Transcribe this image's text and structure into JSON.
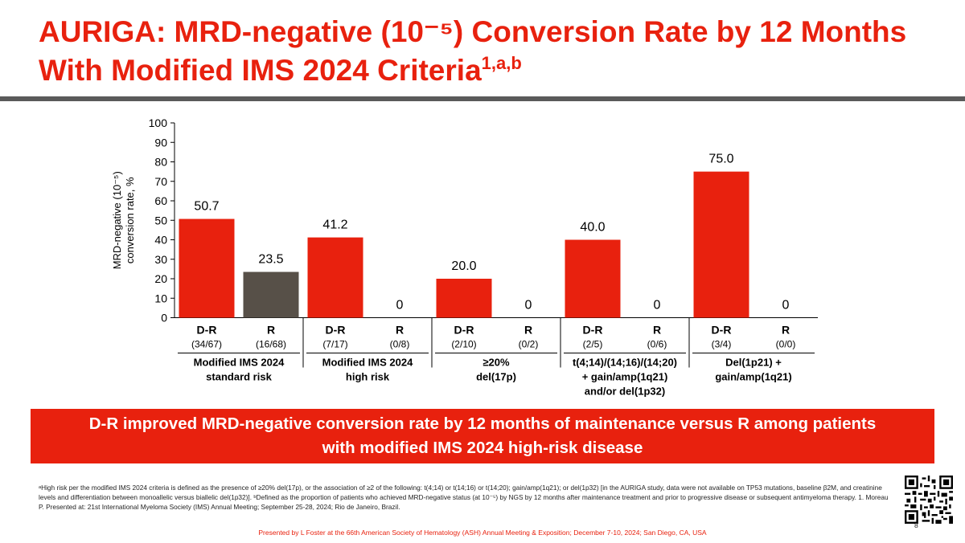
{
  "slide": {
    "title_main": "AURIGA: MRD-negative (10⁻⁵) Conversion Rate by 12 Months With Modified IMS 2024 Criteria",
    "title_superscript": "1,a,b",
    "banner_text": "D-R improved MRD-negative conversion rate by 12 months of maintenance versus R among patients with modified IMS 2024 high-risk disease",
    "footnote": "ᵃHigh risk per the modified IMS 2024 criteria is defined as the presence of ≥20% del(17p), or the association of ≥2 of the following: t(4;14) or t(14;16) or t(14;20); gain/amp(1q21); or del(1p32) [in the AURIGA study, data were not available on TP53 mutations, baseline β2M, and creatinine levels and differentiation between monoallelic versus biallelic del(1p32)]. ᵇDefined as the proportion of patients who achieved MRD-negative status (at 10⁻⁵) by NGS by 12 months after maintenance treatment and prior to progressive disease or subsequent antimyeloma therapy. 1. Moreau P. Presented at: 21st International Myeloma Society (IMS) Annual Meeting; September 25-28, 2024; Rio de Janeiro, Brazil.",
    "page_number": "8",
    "presented_by": "Presented by L Foster at the 66th American Society of Hematology (ASH) Annual Meeting & Exposition; December 7-10, 2024; San Diego, CA, USA"
  },
  "colors": {
    "accent": "#e8210e",
    "r_bar": "#575048",
    "rule": "#5a5a5a"
  },
  "chart_data": {
    "type": "bar",
    "title": "",
    "ylabel_line1": "MRD-negative (10⁻⁵)",
    "ylabel_line2": "conversion rate, %",
    "ylim": [
      0,
      100
    ],
    "yticks": [
      0,
      10,
      20,
      30,
      40,
      50,
      60,
      70,
      80,
      90,
      100
    ],
    "groups": [
      {
        "label_lines": [
          "Modified IMS 2024",
          "standard risk"
        ],
        "bars": [
          {
            "arm": "D-R",
            "n": "(34/67)",
            "value": 50.7,
            "label": "50.7"
          },
          {
            "arm": "R",
            "n": "(16/68)",
            "value": 23.5,
            "label": "23.5"
          }
        ]
      },
      {
        "label_lines": [
          "Modified IMS 2024",
          "high risk"
        ],
        "bars": [
          {
            "arm": "D-R",
            "n": "(7/17)",
            "value": 41.2,
            "label": "41.2"
          },
          {
            "arm": "R",
            "n": "(0/8)",
            "value": 0,
            "label": "0"
          }
        ]
      },
      {
        "label_lines": [
          "≥20%",
          "del(17p)"
        ],
        "bars": [
          {
            "arm": "D-R",
            "n": "(2/10)",
            "value": 20.0,
            "label": "20.0"
          },
          {
            "arm": "R",
            "n": "(0/2)",
            "value": 0,
            "label": "0"
          }
        ]
      },
      {
        "label_lines": [
          "t(4;14)/(14;16)/(14;20)",
          "+ gain/amp(1q21)",
          "and/or del(1p32)"
        ],
        "bars": [
          {
            "arm": "D-R",
            "n": "(2/5)",
            "value": 40.0,
            "label": "40.0"
          },
          {
            "arm": "R",
            "n": "(0/6)",
            "value": 0,
            "label": "0"
          }
        ]
      },
      {
        "label_lines": [
          "Del(1p21) +",
          "gain/amp(1q21)"
        ],
        "bars": [
          {
            "arm": "D-R",
            "n": "(3/4)",
            "value": 75.0,
            "label": "75.0"
          },
          {
            "arm": "R",
            "n": "(0/0)",
            "value": 0,
            "label": "0"
          }
        ]
      }
    ]
  }
}
